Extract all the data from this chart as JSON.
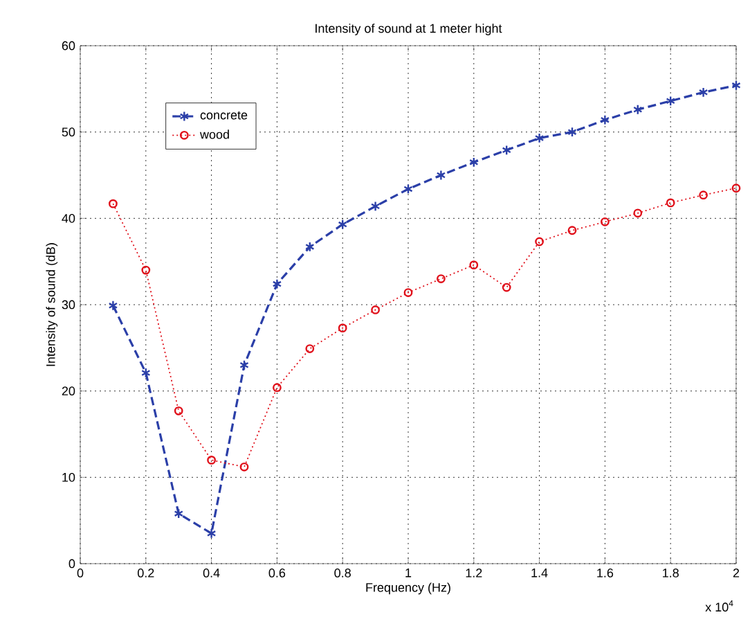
{
  "chart_data": {
    "type": "line",
    "title": "Intensity of sound at 1 meter hight",
    "xlabel": "Frequency (Hz)",
    "ylabel": "Intensity of sound (dB)",
    "x": [
      0.1,
      0.2,
      0.3,
      0.4,
      0.5,
      0.6,
      0.7,
      0.8,
      0.9,
      1,
      1.1,
      1.2,
      1.3,
      1.4,
      1.5,
      1.6,
      1.7,
      1.8,
      1.9,
      2
    ],
    "series": [
      {
        "name": "concrete",
        "color": "#2b3fa8",
        "marker": "cross",
        "line_style": "dashed",
        "values": [
          29.9,
          22.1,
          5.8,
          3.5,
          23,
          32.4,
          36.7,
          39.3,
          41.4,
          43.4,
          45,
          46.5,
          47.9,
          49.3,
          50,
          51.4,
          52.6,
          53.6,
          54.6,
          55.4
        ]
      },
      {
        "name": "wood",
        "color": "#e0101a",
        "marker": "circle",
        "line_style": "dotted",
        "values": [
          41.7,
          34,
          17.7,
          12,
          11.2,
          20.4,
          24.9,
          27.3,
          29.4,
          31.4,
          33,
          34.6,
          32,
          37.3,
          38.6,
          39.6,
          40.6,
          41.8,
          42.7,
          43.5
        ]
      }
    ],
    "xlim": [
      0,
      2
    ],
    "xticks": [
      0,
      0.2,
      0.4,
      0.6,
      0.8,
      1,
      1.2,
      1.4,
      1.6,
      1.8,
      2
    ],
    "ylim": [
      0,
      60
    ],
    "yticks": [
      0,
      10,
      20,
      30,
      40,
      50,
      60
    ],
    "annotations": [
      "x 10$^{4}$"
    ],
    "grid": true,
    "legend": "top left"
  }
}
